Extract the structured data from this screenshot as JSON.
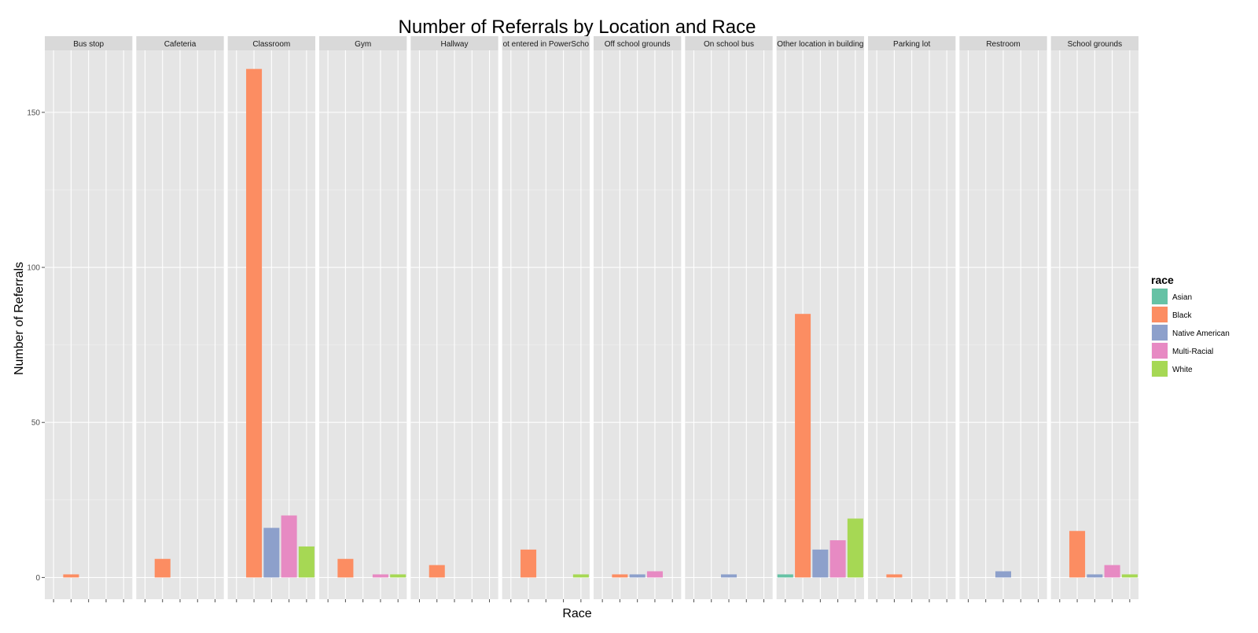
{
  "chart_data": {
    "type": "bar",
    "title": "Number of Referrals by Location and Race",
    "xlabel": "Race",
    "ylabel": "Number of Referrals",
    "ylim": [
      -7,
      170
    ],
    "yticks": [
      0,
      50,
      100,
      150
    ],
    "grid": true,
    "legend": {
      "title": "race",
      "placement": "right"
    },
    "races": [
      "Asian",
      "Black",
      "Native American",
      "Multi-Racial",
      "White"
    ],
    "colors": {
      "Asian": "#66c2a5",
      "Black": "#fc8d62",
      "Native American": "#8da0cb",
      "Multi-Racial": "#e78ac3",
      "White": "#a6d854"
    },
    "panels": [
      {
        "label": "Bus stop",
        "values": [
          0,
          1,
          0,
          0,
          0
        ]
      },
      {
        "label": "Cafeteria",
        "values": [
          0,
          6,
          0,
          0,
          0
        ]
      },
      {
        "label": "Classroom",
        "values": [
          0,
          164,
          16,
          20,
          10
        ]
      },
      {
        "label": "Gym",
        "values": [
          0,
          6,
          0,
          1,
          1
        ]
      },
      {
        "label": "Hallway",
        "values": [
          0,
          4,
          0,
          0,
          0
        ]
      },
      {
        "label": "ot entered in PowerScho",
        "values": [
          0,
          9,
          0,
          0,
          1
        ]
      },
      {
        "label": "Off school grounds",
        "values": [
          0,
          1,
          1,
          2,
          0
        ]
      },
      {
        "label": "On school bus",
        "values": [
          0,
          0,
          1,
          0,
          0
        ]
      },
      {
        "label": "Other location in building",
        "values": [
          1,
          85,
          9,
          12,
          19
        ]
      },
      {
        "label": "Parking lot",
        "values": [
          0,
          1,
          0,
          0,
          0
        ]
      },
      {
        "label": "Restroom",
        "values": [
          0,
          0,
          2,
          0,
          0
        ]
      },
      {
        "label": "School grounds",
        "values": [
          0,
          15,
          1,
          4,
          1
        ]
      }
    ]
  }
}
